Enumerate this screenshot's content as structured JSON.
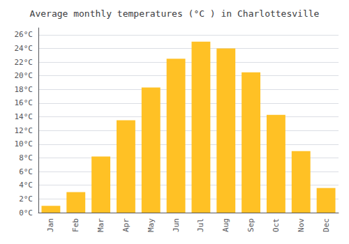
{
  "chart_data": {
    "type": "bar",
    "title": "Average monthly temperatures (°C ) in Charlottesville",
    "categories": [
      "Jan",
      "Feb",
      "Mar",
      "Apr",
      "May",
      "Jun",
      "Jul",
      "Aug",
      "Sep",
      "Oct",
      "Nov",
      "Dec"
    ],
    "values": [
      1.0,
      3.0,
      8.2,
      13.5,
      18.3,
      22.5,
      25.0,
      24.0,
      20.5,
      14.3,
      9.0,
      3.6
    ],
    "color": "#FFC125",
    "ylim": [
      0,
      27
    ],
    "yticks": [
      {
        "value": 0,
        "label": "0°C"
      },
      {
        "value": 2,
        "label": "2°C"
      },
      {
        "value": 4,
        "label": "4°C"
      },
      {
        "value": 6,
        "label": "6°C"
      },
      {
        "value": 8,
        "label": "8°C"
      },
      {
        "value": 10,
        "label": "10°C"
      },
      {
        "value": 12,
        "label": "12°C"
      },
      {
        "value": 14,
        "label": "14°C"
      },
      {
        "value": 16,
        "label": "16°C"
      },
      {
        "value": 18,
        "label": "18°C"
      },
      {
        "value": 20,
        "label": "20°C"
      },
      {
        "value": 22,
        "label": "22°C"
      },
      {
        "value": 24,
        "label": "24°C"
      },
      {
        "value": 26,
        "label": "26°C"
      }
    ],
    "grid": true
  }
}
